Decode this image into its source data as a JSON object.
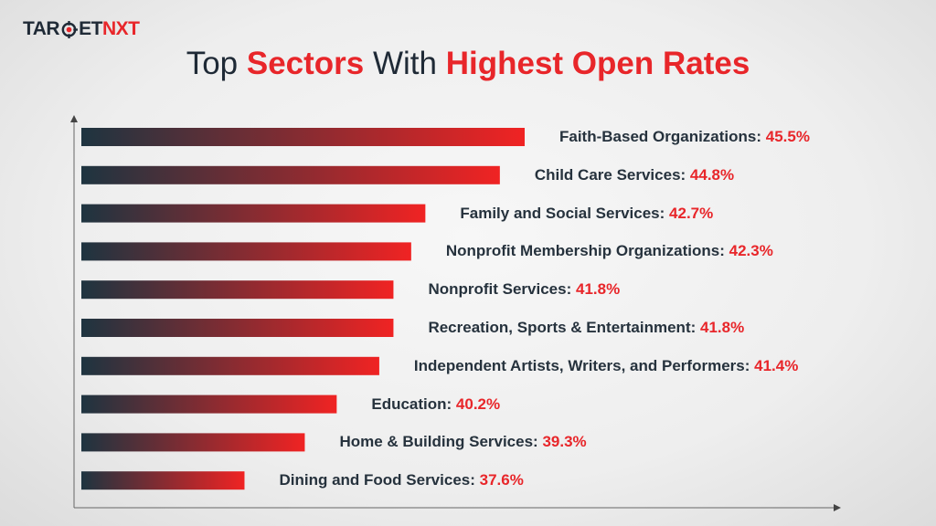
{
  "logo": {
    "text": "TARGETNXT",
    "part1": "TAR",
    "part2": "ET",
    "part3": "NXT"
  },
  "title": {
    "w1": "Top",
    "w2": "Sectors",
    "w3": "With",
    "w4": "Highest Open Rates"
  },
  "chart_data": {
    "type": "bar",
    "orientation": "horizontal",
    "title": "Top Sectors With Highest Open Rates",
    "categories": [
      "Faith-Based Organizations",
      "Child Care Services",
      "Family and Social Services",
      "Nonprofit Membership Organizations",
      "Nonprofit Services",
      "Recreation, Sports & Entertainment",
      "Independent Artists, Writers, and Performers",
      "Education",
      "Home & Building Services",
      "Dining and Food Services"
    ],
    "values": [
      45.5,
      44.8,
      42.7,
      42.3,
      41.8,
      41.8,
      41.4,
      40.2,
      39.3,
      37.6
    ],
    "value_labels": [
      "45.5%",
      "44.8%",
      "42.7%",
      "42.3%",
      "41.8%",
      "41.8%",
      "41.4%",
      "40.2%",
      "39.3%",
      "37.6%"
    ],
    "xlim": [
      33,
      46
    ],
    "grid": false,
    "colors": {
      "bar_start": "#1e3440",
      "bar_end": "#f02323",
      "value_text": "#e8262a",
      "label_text": "#26323d"
    }
  }
}
